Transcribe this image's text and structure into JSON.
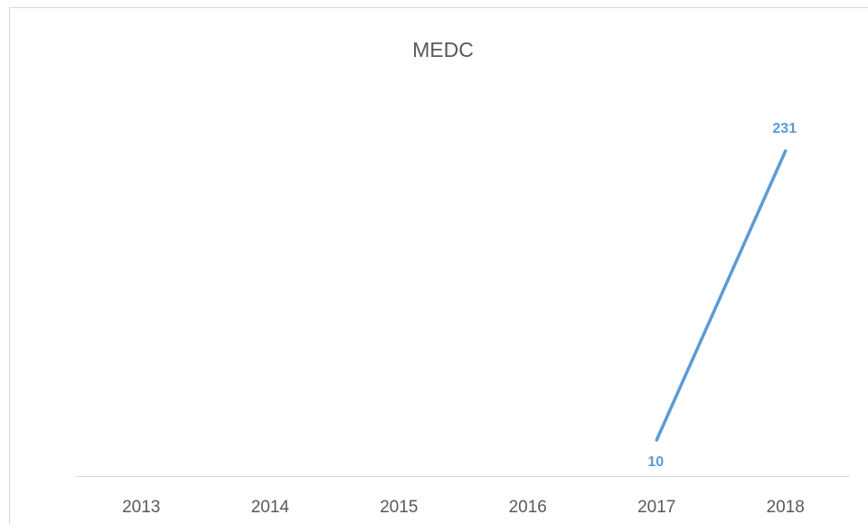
{
  "chart_data": {
    "type": "line",
    "title": "MEDC",
    "categories": [
      "2013",
      "2014",
      "2015",
      "2016",
      "2017",
      "2018"
    ],
    "values": [
      null,
      null,
      null,
      null,
      10,
      231
    ],
    "color": "#5b9bd5",
    "grid": false
  }
}
